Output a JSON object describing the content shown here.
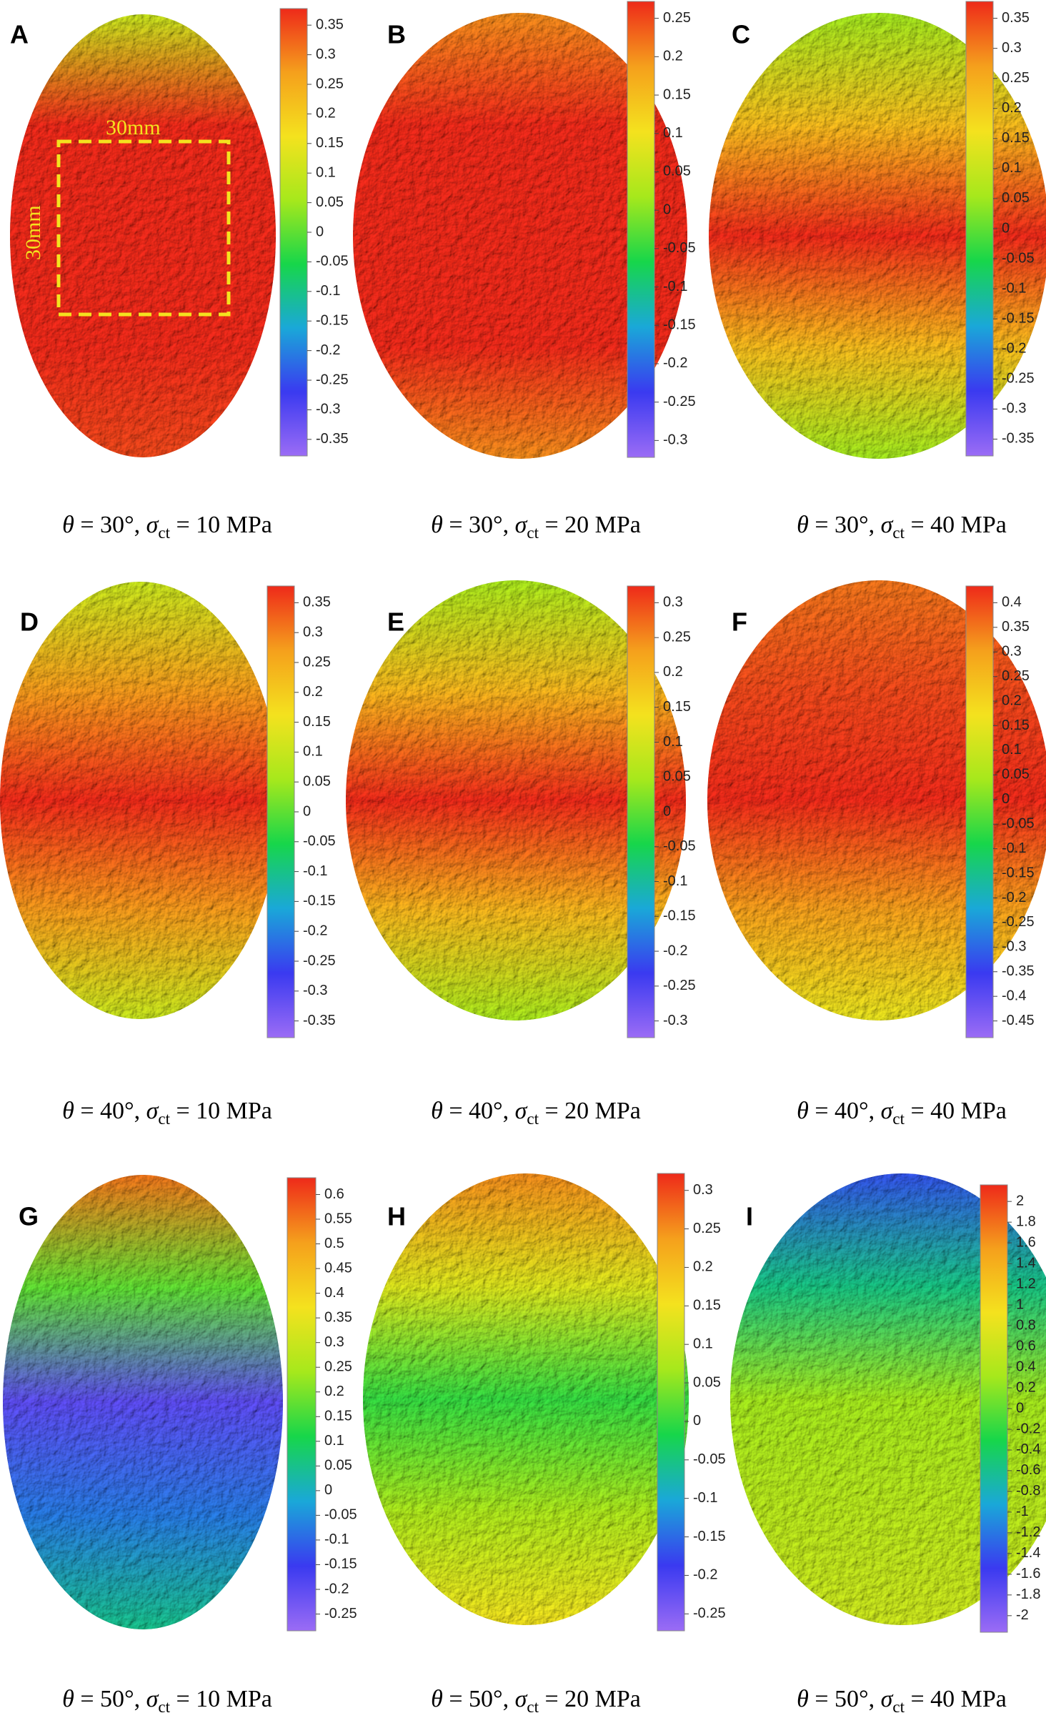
{
  "panels": [
    {
      "letter": "A",
      "theta": "30",
      "sigma": "10",
      "ticks": [
        "0.35",
        "0.3",
        "0.25",
        "0.2",
        "0.15",
        "0.1",
        "0.05",
        "0",
        "-0.05",
        "-0.1",
        "-0.15",
        "-0.2",
        "-0.25",
        "-0.3",
        "-0.35"
      ],
      "tint": [
        0.1,
        0.75,
        0.35
      ]
    },
    {
      "letter": "B",
      "theta": "30",
      "sigma": "20",
      "ticks": [
        "0.25",
        "0.2",
        "0.15",
        "0.1",
        "0.05",
        "0",
        "-0.05",
        "-0.1",
        "-0.15",
        "-0.2",
        "-0.25",
        "-0.3"
      ],
      "tint": [
        0.2,
        0.55,
        0.2
      ]
    },
    {
      "letter": "C",
      "theta": "30",
      "sigma": "40",
      "ticks": [
        "0.35",
        "0.3",
        "0.25",
        "0.2",
        "0.15",
        "0.1",
        "0.05",
        "0",
        "-0.05",
        "-0.1",
        "-0.15",
        "-0.2",
        "-0.25",
        "-0.3",
        "-0.35"
      ],
      "tint": [
        0.05,
        0.4,
        0.05
      ]
    },
    {
      "letter": "D",
      "theta": "40",
      "sigma": "10",
      "ticks": [
        "0.35",
        "0.3",
        "0.25",
        "0.2",
        "0.15",
        "0.1",
        "0.05",
        "0",
        "-0.05",
        "-0.1",
        "-0.15",
        "-0.2",
        "-0.25",
        "-0.3",
        "-0.35"
      ],
      "tint": [
        0.1,
        0.45,
        0.1
      ]
    },
    {
      "letter": "E",
      "theta": "40",
      "sigma": "20",
      "ticks": [
        "0.3",
        "0.25",
        "0.2",
        "0.15",
        "0.1",
        "0.05",
        "0",
        "-0.05",
        "-0.1",
        "-0.15",
        "-0.2",
        "-0.25",
        "-0.3"
      ],
      "tint": [
        0.05,
        0.35,
        0.05
      ]
    },
    {
      "letter": "F",
      "theta": "40",
      "sigma": "40",
      "ticks": [
        "0.4",
        "0.35",
        "0.3",
        "0.25",
        "0.2",
        "0.15",
        "0.1",
        "0.05",
        "0",
        "-0.05",
        "-0.1",
        "-0.15",
        "-0.2",
        "-0.25",
        "-0.3",
        "-0.35",
        "-0.4",
        "-0.45"
      ],
      "tint": [
        0.35,
        0.45,
        0.15
      ]
    },
    {
      "letter": "G",
      "theta": "50",
      "sigma": "10",
      "ticks": [
        "0.6",
        "0.55",
        "0.5",
        "0.45",
        "0.4",
        "0.35",
        "0.3",
        "0.25",
        "0.2",
        "0.15",
        "0.1",
        "0.05",
        "0",
        "-0.05",
        "-0.1",
        "-0.15",
        "-0.2",
        "-0.25"
      ],
      "tint": [
        0.55,
        -0.2,
        0.05
      ]
    },
    {
      "letter": "H",
      "theta": "50",
      "sigma": "20",
      "ticks": [
        "0.3",
        "0.25",
        "0.2",
        "0.15",
        "0.1",
        "0.05",
        "0",
        "-0.05",
        "-0.1",
        "-0.15",
        "-0.2",
        "-0.25"
      ],
      "tint": [
        0.25,
        0.0,
        0.15
      ]
    },
    {
      "letter": "I",
      "theta": "50",
      "sigma": "40",
      "ticks": [
        "2",
        "1.8",
        "1.6",
        "1.4",
        "1.2",
        "1",
        "0.8",
        "0.6",
        "0.4",
        "0.2",
        "0",
        "-0.2",
        "-0.4",
        "-0.6",
        "-0.8",
        "-1",
        "-1.2",
        "-1.4",
        "-1.6",
        "-1.8",
        "-2"
      ],
      "tint": [
        -1.4,
        0.3,
        0.6
      ]
    }
  ],
  "annotation": {
    "label_top": "30mm",
    "label_left": "30mm",
    "color": "#f4e21e"
  },
  "caption": {
    "theta_symbol": "θ",
    "sigma_symbol": "σ",
    "sigma_sub": "ct",
    "equals": " = ",
    "degree": "°",
    "separator": ", ",
    "unit": " MPa"
  },
  "colormap": [
    "#9b6cf5",
    "#3a3af0",
    "#1aa8d8",
    "#17d64a",
    "#a6e81c",
    "#f4e21e",
    "#f5a01c",
    "#ee2a1a"
  ]
}
